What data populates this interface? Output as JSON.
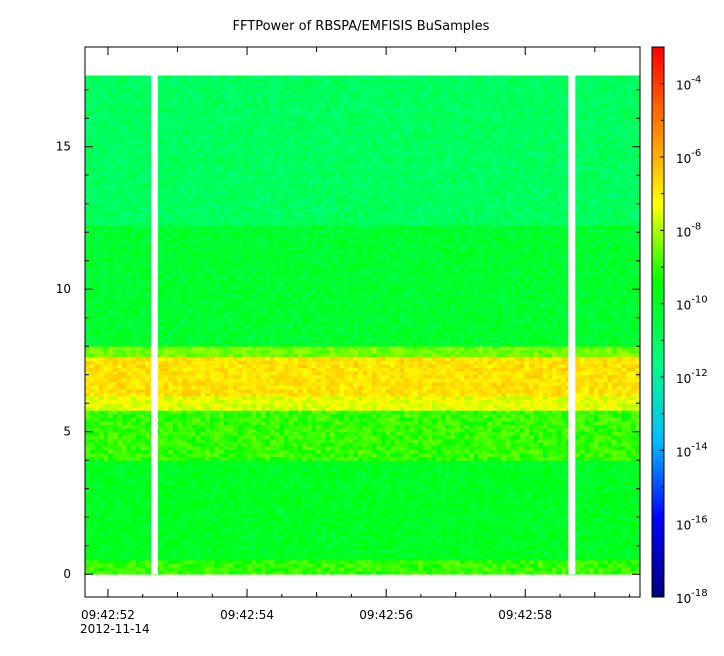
{
  "chart_data": {
    "type": "heatmap",
    "title": "FFTPower of RBSPA/EMFISIS  BuSamples",
    "xlabel": "",
    "ylabel": "",
    "x_ticks": [
      {
        "t": 0.0,
        "label": "09:42:52",
        "sublabel": "2012-11-14"
      },
      {
        "t": 2.0,
        "label": "09:42:54"
      },
      {
        "t": 4.0,
        "label": "09:42:56"
      },
      {
        "t": 6.0,
        "label": "09:42:58"
      }
    ],
    "x_minor_ticks": [
      1.0,
      3.0,
      5.0,
      7.0
    ],
    "xlim": [
      -0.33,
      7.65
    ],
    "ylim": [
      -0.8,
      18.5
    ],
    "y_ticks": [
      0,
      5,
      10,
      15
    ],
    "data_ylim": [
      0,
      17.5
    ],
    "data_gaps": [
      {
        "x_start": 0.62,
        "x_end": 0.72
      },
      {
        "x_start": 6.62,
        "x_end": 6.72
      }
    ],
    "colorbar": {
      "scale": "log",
      "range": [
        1e-18,
        0.001
      ],
      "ticks": [
        {
          "value": -4,
          "label": "10",
          "exp": "-4"
        },
        {
          "value": -6,
          "label": "10",
          "exp": "-6"
        },
        {
          "value": -8,
          "label": "10",
          "exp": "-8"
        },
        {
          "value": -10,
          "label": "10",
          "exp": "-10"
        },
        {
          "value": -12,
          "label": "10",
          "exp": "-12"
        },
        {
          "value": -14,
          "label": "10",
          "exp": "-14"
        },
        {
          "value": -16,
          "label": "10",
          "exp": "-16"
        },
        {
          "value": -18,
          "label": "10",
          "exp": "-18"
        }
      ],
      "colors": [
        "#00007f",
        "#0000ff",
        "#00bfff",
        "#00ff7f",
        "#00ff00",
        "#ffff00",
        "#ff7f00",
        "#ff0000"
      ]
    },
    "bands": [
      {
        "y_from": 0.0,
        "y_to": 0.5,
        "log_power": -9.0
      },
      {
        "y_from": 0.5,
        "y_to": 4.0,
        "log_power": -10.0
      },
      {
        "y_from": 4.0,
        "y_to": 5.8,
        "log_power": -9.0
      },
      {
        "y_from": 5.8,
        "y_to": 6.3,
        "log_power": -7.5
      },
      {
        "y_from": 6.3,
        "y_to": 7.6,
        "log_power": -6.8
      },
      {
        "y_from": 7.6,
        "y_to": 8.0,
        "log_power": -8.5
      },
      {
        "y_from": 8.0,
        "y_to": 12.3,
        "log_power": -10.2
      },
      {
        "y_from": 12.3,
        "y_to": 17.5,
        "log_power": -11.0
      }
    ]
  }
}
